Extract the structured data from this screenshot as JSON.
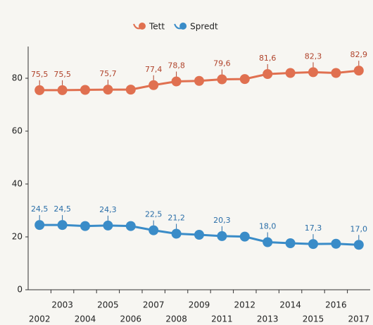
{
  "chart_data": {
    "type": "line",
    "categories": [
      "2002",
      "2003",
      "2004",
      "2005",
      "2006",
      "2007",
      "2008",
      "2009",
      "2011",
      "2012",
      "2013",
      "2014",
      "2015",
      "2016",
      "2017"
    ],
    "series": [
      {
        "name": "Tett",
        "color": "#e07050",
        "label_color": "#b0442c",
        "values": [
          75.5,
          75.5,
          75.6,
          75.7,
          75.7,
          77.4,
          78.8,
          79.0,
          79.6,
          79.7,
          81.6,
          82.0,
          82.3,
          82.0,
          82.9
        ],
        "value_labels": [
          "75,5",
          "75,5",
          null,
          "75,7",
          null,
          "77,4",
          "78,8",
          null,
          "79,6",
          null,
          "81,6",
          null,
          "82,3",
          null,
          "82,9"
        ]
      },
      {
        "name": "Spredt",
        "color": "#3a8cc8",
        "label_color": "#2a6ea8",
        "values": [
          24.5,
          24.5,
          24.1,
          24.3,
          24.1,
          22.5,
          21.2,
          20.8,
          20.3,
          20.1,
          18.0,
          17.6,
          17.3,
          17.4,
          17.0
        ],
        "value_labels": [
          "24,5",
          "24,5",
          null,
          "24,3",
          null,
          "22,5",
          "21,2",
          null,
          "20,3",
          null,
          "18,0",
          null,
          "17,3",
          null,
          "17,0"
        ]
      }
    ],
    "ylim": [
      0,
      92
    ],
    "yticks": [
      0,
      20,
      40,
      60,
      80
    ],
    "legend": "top"
  }
}
